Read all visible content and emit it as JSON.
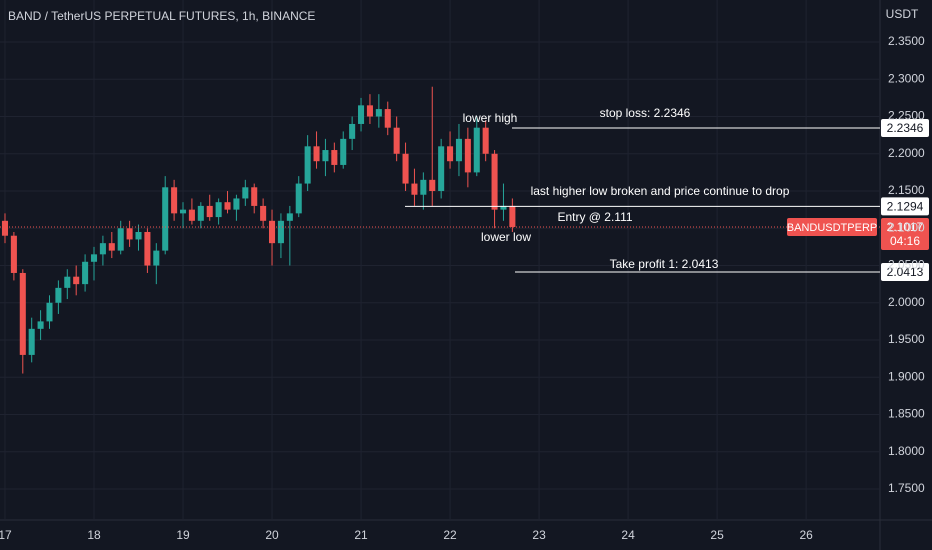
{
  "chart_data": {
    "type": "candlestick",
    "title": "BAND / TetherUS PERPETUAL FUTURES, 1h, BINANCE",
    "y_axis_unit": "USDT",
    "symbol": "BANDUSDTPERP",
    "countdown": "04:16",
    "last_price": 2.1017,
    "up_color": "#26a69a",
    "down_color": "#ef5350",
    "grid": true,
    "xlim": [
      16.944,
      26.83
    ],
    "ylim": [
      1.7084,
      2.4064
    ],
    "xticks": [
      17,
      18,
      19,
      20,
      21,
      22,
      23,
      24,
      25,
      26
    ],
    "yticks": [
      {
        "value": 1.75,
        "label": "1.7500"
      },
      {
        "value": 1.8,
        "label": "1.8000"
      },
      {
        "value": 1.85,
        "label": "1.8500"
      },
      {
        "value": 1.9,
        "label": "1.9000"
      },
      {
        "value": 1.95,
        "label": "1.9500"
      },
      {
        "value": 2.0,
        "label": "2.0000"
      },
      {
        "value": 2.05,
        "label": "2.0500"
      },
      {
        "value": 2.1,
        "label": "2.1000"
      },
      {
        "value": 2.15,
        "label": "2.1500"
      },
      {
        "value": 2.2,
        "label": "2.2000"
      },
      {
        "value": 2.25,
        "label": "2.2500"
      },
      {
        "value": 2.3,
        "label": "2.3000"
      },
      {
        "value": 2.35,
        "label": "2.3500"
      }
    ],
    "x": [
      17.0,
      17.1,
      17.2,
      17.3,
      17.4,
      17.5,
      17.6,
      17.7,
      17.8,
      17.9,
      18.0,
      18.1,
      18.2,
      18.3,
      18.4,
      18.5,
      18.6,
      18.7,
      18.8,
      18.9,
      19.0,
      19.1,
      19.2,
      19.3,
      19.4,
      19.5,
      19.6,
      19.7,
      19.8,
      19.9,
      20.0,
      20.1,
      20.2,
      20.3,
      20.4,
      20.5,
      20.6,
      20.7,
      20.8,
      20.9,
      21.0,
      21.1,
      21.2,
      21.3,
      21.4,
      21.5,
      21.6,
      21.7,
      21.8,
      21.9,
      22.0,
      22.1,
      22.2,
      22.3,
      22.4,
      22.5,
      22.6,
      22.7
    ],
    "open": [
      2.11,
      2.09,
      2.04,
      1.93,
      1.965,
      1.975,
      2.0,
      2.02,
      2.035,
      2.025,
      2.055,
      2.065,
      2.08,
      2.07,
      2.1,
      2.085,
      2.095,
      2.05,
      2.07,
      2.155,
      2.12,
      2.125,
      2.11,
      2.13,
      2.115,
      2.135,
      2.125,
      2.14,
      2.155,
      2.13,
      2.11,
      2.08,
      2.11,
      2.12,
      2.16,
      2.21,
      2.19,
      2.205,
      2.185,
      2.22,
      2.24,
      2.265,
      2.25,
      2.26,
      2.235,
      2.2,
      2.16,
      2.145,
      2.165,
      2.15,
      2.21,
      2.19,
      2.22,
      2.175,
      2.235,
      2.2,
      2.125,
      2.13
    ],
    "high": [
      2.12,
      2.095,
      2.045,
      1.98,
      1.99,
      2.01,
      2.03,
      2.045,
      2.05,
      2.065,
      2.075,
      2.09,
      2.095,
      2.11,
      2.11,
      2.105,
      2.1,
      2.08,
      2.17,
      2.165,
      2.135,
      2.14,
      2.135,
      2.145,
      2.14,
      2.15,
      2.145,
      2.165,
      2.16,
      2.14,
      2.125,
      2.12,
      2.13,
      2.17,
      2.225,
      2.23,
      2.22,
      2.215,
      2.23,
      2.25,
      2.275,
      2.28,
      2.28,
      2.27,
      2.25,
      2.215,
      2.18,
      2.175,
      2.29,
      2.22,
      2.23,
      2.24,
      2.235,
      2.25,
      2.245,
      2.205,
      2.16,
      2.14
    ],
    "low": [
      2.08,
      2.03,
      1.905,
      1.92,
      1.95,
      1.965,
      1.985,
      2.005,
      2.01,
      2.015,
      2.03,
      2.05,
      2.06,
      2.065,
      2.075,
      2.07,
      2.04,
      2.025,
      2.065,
      2.11,
      2.1,
      2.105,
      2.1,
      2.11,
      2.105,
      2.12,
      2.11,
      2.13,
      2.12,
      2.1,
      2.05,
      2.06,
      2.05,
      2.115,
      2.15,
      2.18,
      2.17,
      2.175,
      2.18,
      2.205,
      2.23,
      2.24,
      2.235,
      2.225,
      2.19,
      2.15,
      2.13,
      2.125,
      2.13,
      2.14,
      2.18,
      2.17,
      2.155,
      2.17,
      2.19,
      2.1,
      2.11,
      2.095
    ],
    "close": [
      2.09,
      2.04,
      1.93,
      1.965,
      1.975,
      2.0,
      2.02,
      2.035,
      2.025,
      2.055,
      2.065,
      2.08,
      2.07,
      2.1,
      2.085,
      2.095,
      2.05,
      2.07,
      2.155,
      2.12,
      2.125,
      2.11,
      2.13,
      2.115,
      2.135,
      2.125,
      2.14,
      2.155,
      2.13,
      2.11,
      2.08,
      2.11,
      2.12,
      2.16,
      2.21,
      2.19,
      2.205,
      2.185,
      2.22,
      2.24,
      2.265,
      2.25,
      2.26,
      2.235,
      2.2,
      2.16,
      2.145,
      2.165,
      2.15,
      2.21,
      2.19,
      2.22,
      2.175,
      2.235,
      2.2,
      2.125,
      2.13,
      2.1017
    ],
    "levels": [
      2.2346,
      2.1294,
      2.0413
    ],
    "annotations": [
      "lower high",
      "stop loss: 2.2346",
      "last higher low broken and price continue to drop",
      "Entry @ 2.111",
      "lower low",
      "Take profit 1: 2.0413"
    ]
  }
}
